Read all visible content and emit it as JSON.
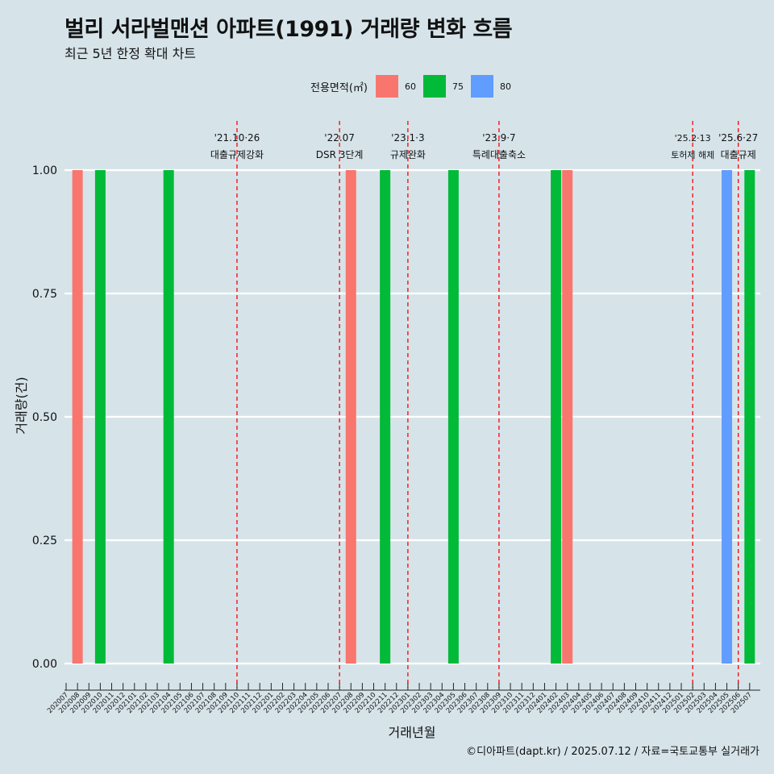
{
  "title": "벌리 서라벌맨션 아파트(1991) 거래량 변화 흐름",
  "subtitle": "최근 5년 한정 확대 차트",
  "caption": "©디아파트(dapt.kr) / 2025.07.12 / 자료=국토교통부 실거래가",
  "legend": {
    "title": "전용면적(㎡)",
    "items": [
      {
        "label": "60",
        "color": "#f8766d"
      },
      {
        "label": "75",
        "color": "#00ba38"
      },
      {
        "label": "80",
        "color": "#619cff"
      }
    ]
  },
  "chart_data": {
    "type": "bar",
    "xlabel": "거래년월",
    "ylabel": "거래량(건)",
    "ylim": [
      0,
      1
    ],
    "yticks": [
      "0.00",
      "0.25",
      "0.50",
      "0.75",
      "1.00"
    ],
    "categories": [
      "202007",
      "202008",
      "202009",
      "202010",
      "202011",
      "202012",
      "202101",
      "202102",
      "202103",
      "202104",
      "202105",
      "202106",
      "202107",
      "202108",
      "202109",
      "202110",
      "202111",
      "202112",
      "202201",
      "202202",
      "202203",
      "202204",
      "202205",
      "202206",
      "202207",
      "202208",
      "202209",
      "202210",
      "202211",
      "202212",
      "202301",
      "202302",
      "202303",
      "202304",
      "202305",
      "202306",
      "202307",
      "202308",
      "202309",
      "202310",
      "202311",
      "202312",
      "202401",
      "202402",
      "202403",
      "202404",
      "202405",
      "202406",
      "202407",
      "202408",
      "202409",
      "202410",
      "202411",
      "202412",
      "202501",
      "202502",
      "202503",
      "202504",
      "202505",
      "202506",
      "202507"
    ],
    "bars": [
      {
        "month": "202008",
        "area": "60",
        "value": 1
      },
      {
        "month": "202010",
        "area": "75",
        "value": 1
      },
      {
        "month": "202104",
        "area": "75",
        "value": 1
      },
      {
        "month": "202208",
        "area": "60",
        "value": 1
      },
      {
        "month": "202211",
        "area": "75",
        "value": 1
      },
      {
        "month": "202305",
        "area": "75",
        "value": 1
      },
      {
        "month": "202402",
        "area": "75",
        "value": 1
      },
      {
        "month": "202403",
        "area": "60",
        "value": 1
      },
      {
        "month": "202505",
        "area": "80",
        "value": 1
      },
      {
        "month": "202507",
        "area": "75",
        "value": 1
      }
    ],
    "events": [
      {
        "month": "202110",
        "date": "'21.10·26",
        "label": "대출규제강화"
      },
      {
        "month": "202207",
        "date": "'22.07",
        "label": "DSR 3단계"
      },
      {
        "month": "202301",
        "date": "'23.1·3",
        "label": "규제완화"
      },
      {
        "month": "202309",
        "date": "'23.9·7",
        "label": "특례대출축소"
      },
      {
        "month": "202502",
        "date": "'25.2·13",
        "label": "토허제 해제"
      },
      {
        "month": "202506",
        "date": "'25.6·27",
        "label": "대출규제"
      }
    ],
    "grid": true,
    "legend_position": "top"
  }
}
